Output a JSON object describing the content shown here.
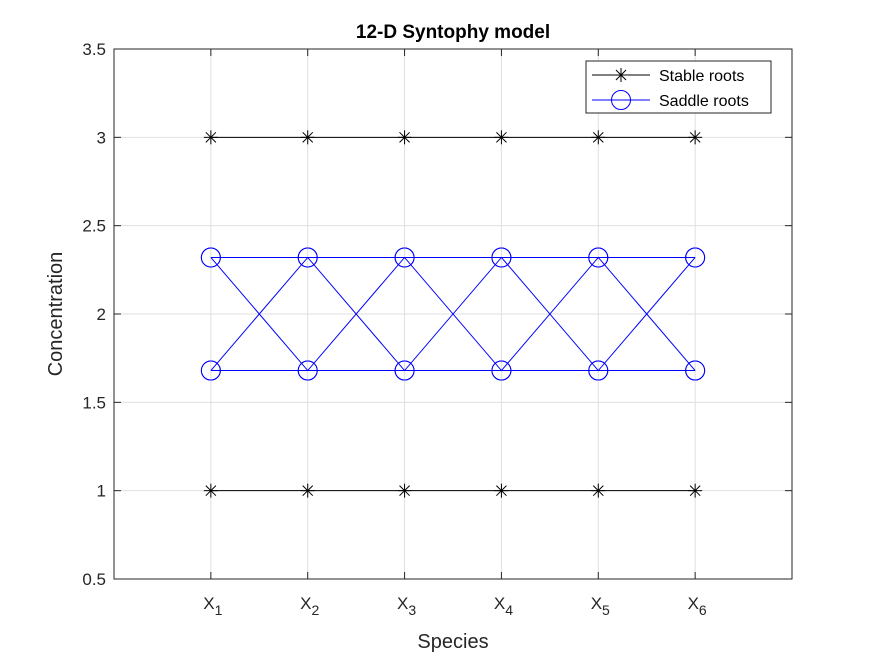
{
  "chart_data": {
    "type": "line",
    "title": "12-D Syntophy model",
    "xlabel": "Species",
    "ylabel": "Concentration",
    "categories": [
      {
        "base": "X",
        "sub": "1"
      },
      {
        "base": "X",
        "sub": "2"
      },
      {
        "base": "X",
        "sub": "3"
      },
      {
        "base": "X",
        "sub": "4"
      },
      {
        "base": "X",
        "sub": "5"
      },
      {
        "base": "X",
        "sub": "6"
      }
    ],
    "xlim": [
      0,
      7
    ],
    "ylim": [
      0.5,
      3.5
    ],
    "yticks": [
      "0.5",
      "1",
      "1.5",
      "2",
      "2.5",
      "3",
      "3.5"
    ],
    "grid": true,
    "legend_position": "top-right",
    "series": [
      {
        "name": "Stable roots",
        "marker": "asterisk",
        "color": "#000000",
        "lines": [
          [
            1,
            1,
            1,
            1,
            1,
            1
          ],
          [
            3,
            3,
            3,
            3,
            3,
            3
          ]
        ]
      },
      {
        "name": "Saddle roots",
        "marker": "circle",
        "color": "#0000ff",
        "lines": [
          [
            2.32,
            1.68,
            2.32,
            1.68,
            2.32,
            1.68
          ],
          [
            1.68,
            2.32,
            1.68,
            2.32,
            1.68,
            2.32
          ],
          [
            2.32,
            2.32,
            2.32,
            2.32,
            2.32,
            2.32
          ],
          [
            1.68,
            1.68,
            1.68,
            1.68,
            1.68,
            1.68
          ]
        ]
      }
    ]
  }
}
